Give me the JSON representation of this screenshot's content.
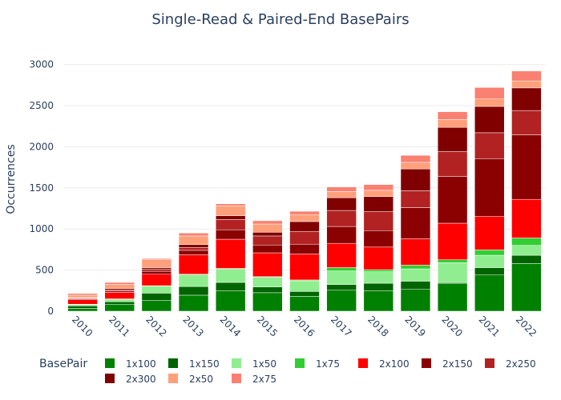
{
  "chart_data": {
    "type": "bar",
    "title": "Single-Read & Paired-End BasePairs",
    "xlabel": "",
    "ylabel": "Occurrences",
    "ylim": [
      0,
      3200
    ],
    "yticks": [
      0,
      500,
      1000,
      1500,
      2000,
      2500,
      3000
    ],
    "grid": true,
    "legend_title": "BasePair",
    "legend_position": "bottom",
    "categories": [
      "2010",
      "2011",
      "2012",
      "2013",
      "2014",
      "2015",
      "2016",
      "2017",
      "2018",
      "2019",
      "2020",
      "2021",
      "2022"
    ],
    "series": [
      {
        "name": "1x100",
        "color": "#008000",
        "values": [
          35,
          85,
          130,
          195,
          250,
          225,
          180,
          255,
          250,
          265,
          340,
          440,
          580
        ]
      },
      {
        "name": "1x150",
        "color": "#006400",
        "values": [
          30,
          30,
          90,
          105,
          100,
          70,
          60,
          70,
          90,
          100,
          10,
          90,
          100
        ]
      },
      {
        "name": "1x50",
        "color": "#90ee90",
        "values": [
          15,
          30,
          85,
          145,
          165,
          120,
          130,
          165,
          140,
          150,
          240,
          150,
          120
        ]
      },
      {
        "name": "1x75",
        "color": "#32cd32",
        "values": [
          5,
          5,
          5,
          5,
          5,
          5,
          10,
          40,
          25,
          45,
          35,
          65,
          90
        ]
      },
      {
        "name": "2x100",
        "color": "#ff0000",
        "values": [
          55,
          80,
          140,
          235,
          355,
          290,
          315,
          295,
          275,
          320,
          445,
          410,
          470
        ]
      },
      {
        "name": "2x150",
        "color": "#8b0000",
        "values": [
          10,
          15,
          35,
          55,
          115,
          95,
          120,
          205,
          200,
          380,
          570,
          700,
          785
        ]
      },
      {
        "name": "2x250",
        "color": "#b22222",
        "values": [
          10,
          15,
          25,
          35,
          125,
          110,
          155,
          195,
          230,
          205,
          300,
          315,
          295
        ]
      },
      {
        "name": "2x300",
        "color": "#800000",
        "values": [
          5,
          15,
          20,
          35,
          45,
          45,
          120,
          155,
          185,
          265,
          295,
          320,
          275
        ]
      },
      {
        "name": "2x50",
        "color": "#ffa07a",
        "values": [
          30,
          50,
          95,
          105,
          120,
          100,
          85,
          75,
          75,
          80,
          95,
          90,
          85
        ]
      },
      {
        "name": "2x75",
        "color": "#fa8072",
        "values": [
          20,
          25,
          15,
          35,
          25,
          40,
          40,
          55,
          70,
          85,
          95,
          140,
          120
        ]
      }
    ]
  }
}
